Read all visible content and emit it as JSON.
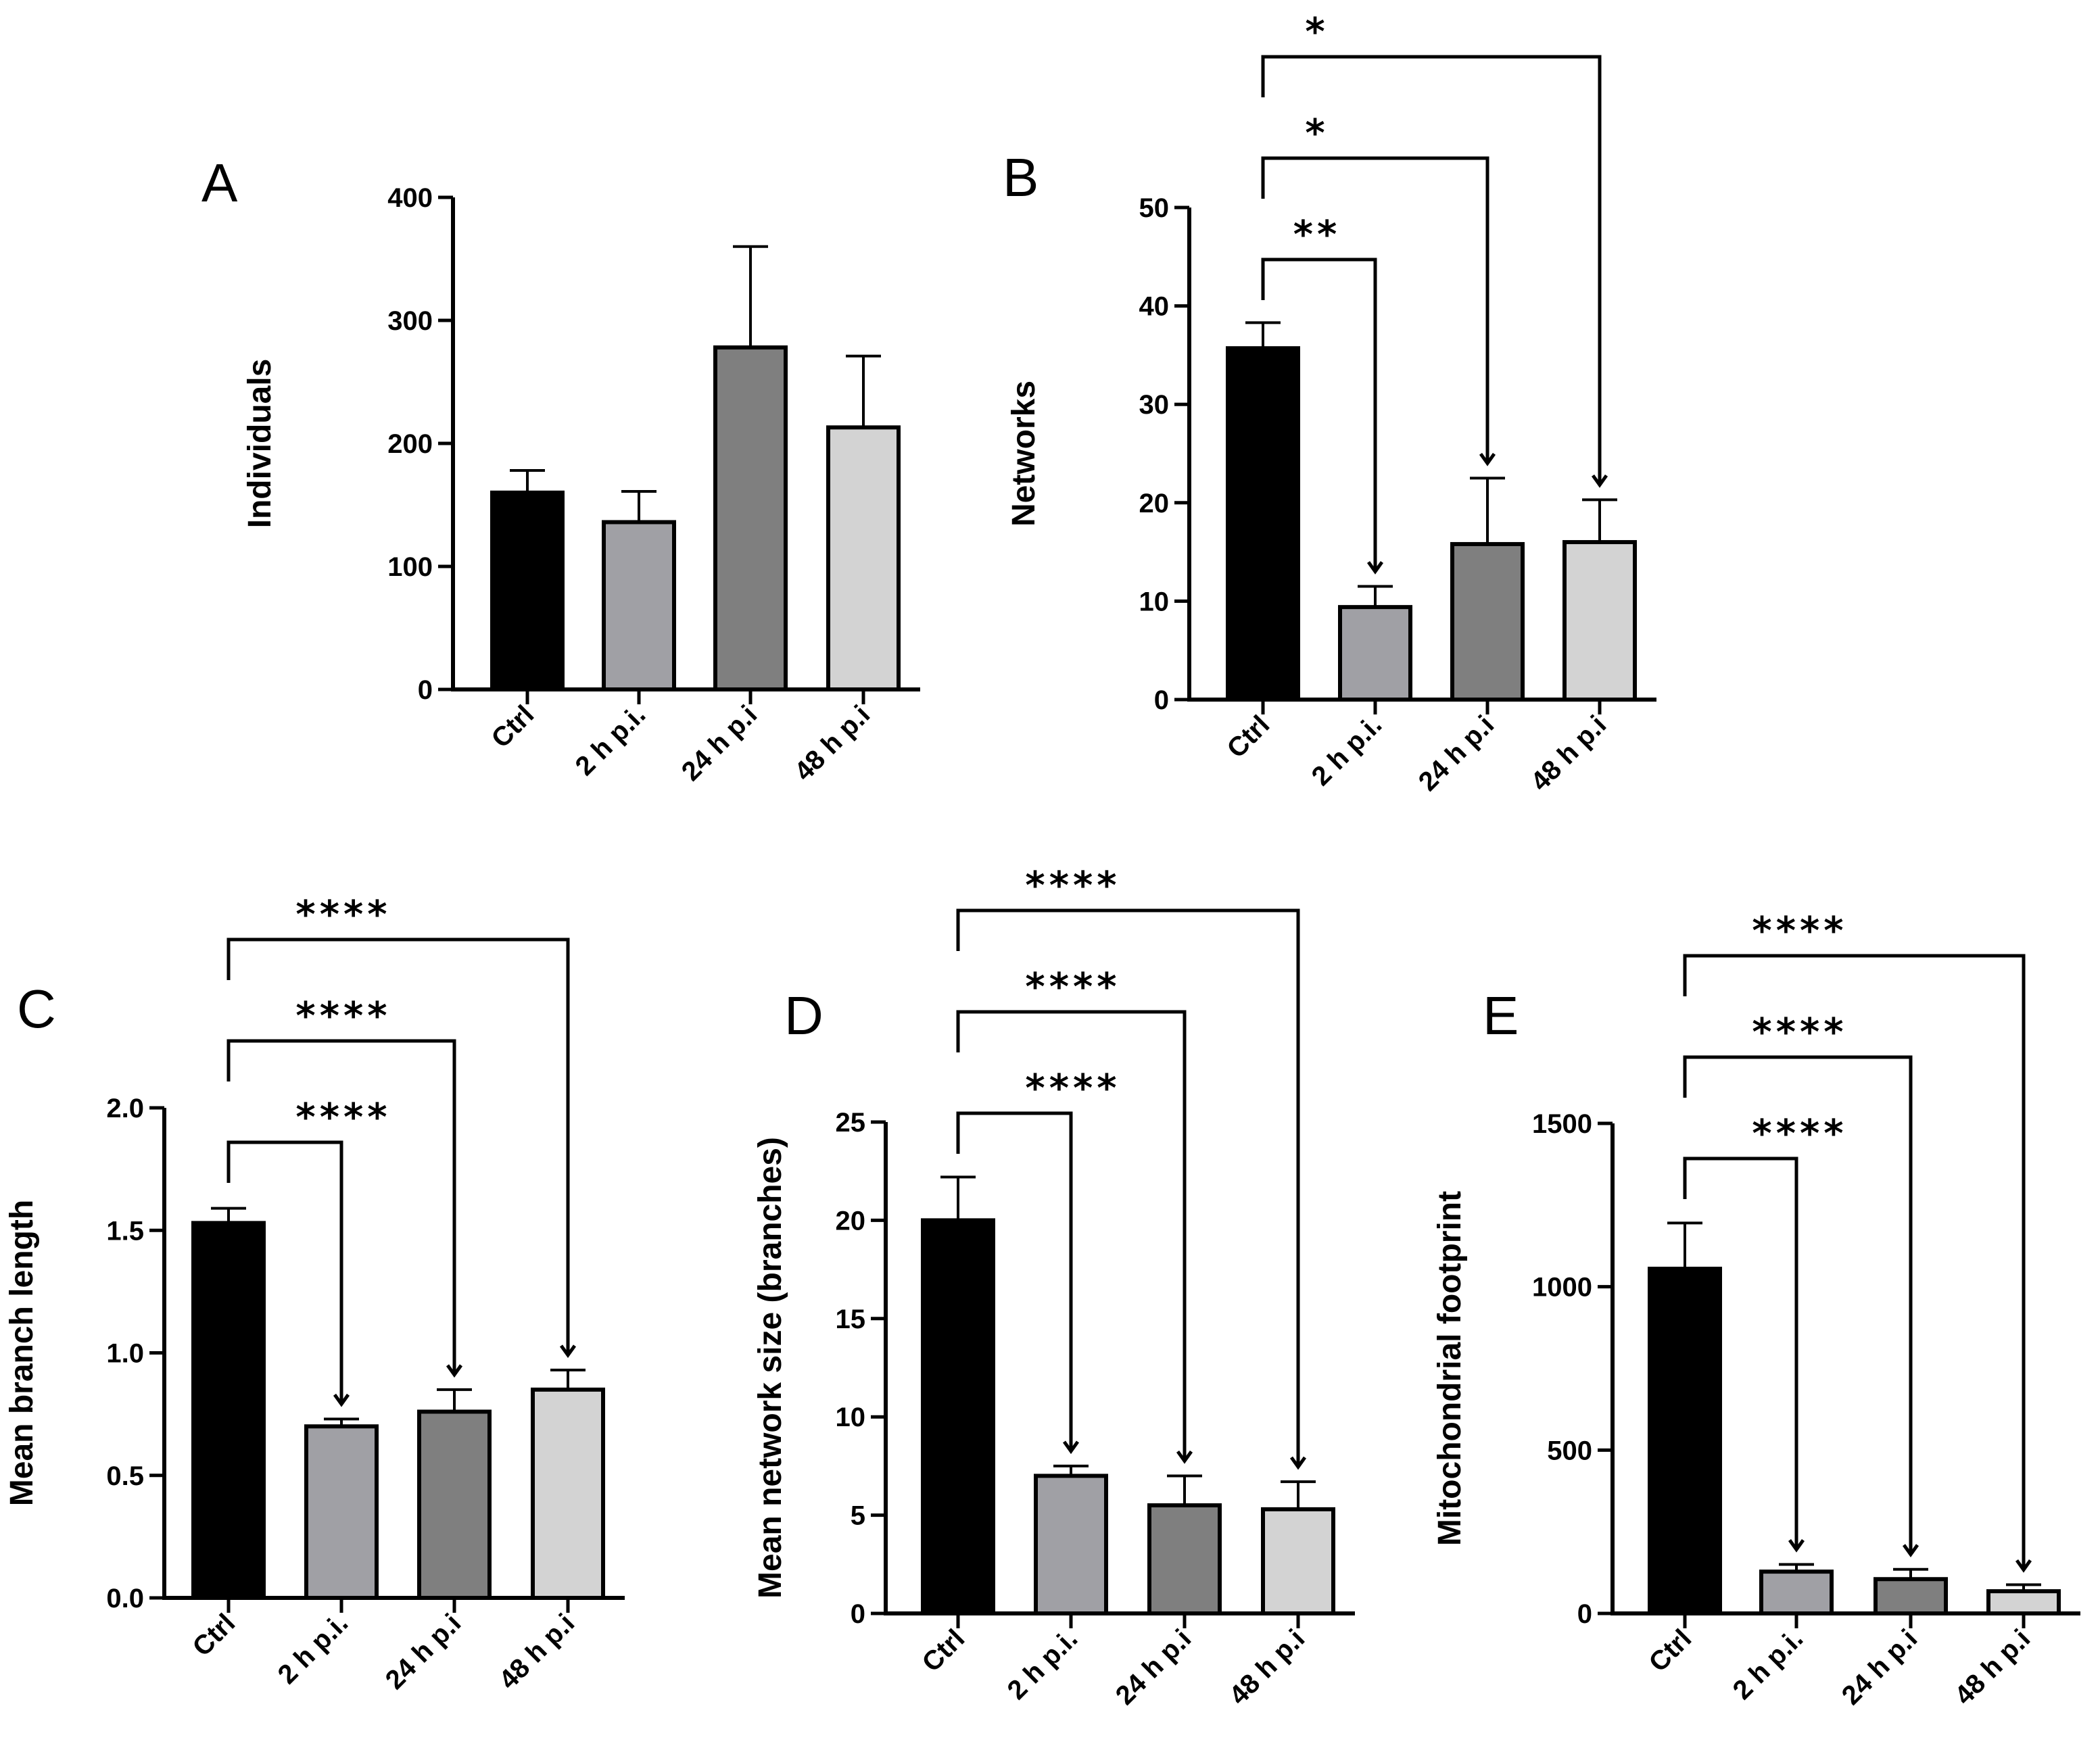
{
  "chart_data": [
    {
      "panel": "A",
      "type": "bar",
      "ylabel": "Individuals",
      "ylim": [
        0,
        400
      ],
      "yticks": [
        0,
        100,
        200,
        300,
        400
      ],
      "categories": [
        "Ctrl",
        "2 h p.i.",
        "24 h p.i",
        "48 h p.i"
      ],
      "values": [
        160,
        136,
        278,
        213
      ],
      "errors": [
        18,
        25,
        82,
        58
      ],
      "colors": [
        "#000000",
        "#a0a0a5",
        "#7f7f7f",
        "#d3d3d3"
      ],
      "significance": []
    },
    {
      "panel": "B",
      "type": "bar",
      "ylabel": "Networks",
      "ylim": [
        0,
        50
      ],
      "yticks": [
        0,
        10,
        20,
        30,
        40,
        50
      ],
      "categories": [
        "Ctrl",
        "2 h p.i.",
        "24 h p.i",
        "48 h p.i"
      ],
      "values": [
        35.7,
        9.4,
        15.8,
        16
      ],
      "errors": [
        2.6,
        2.1,
        6.7,
        4.3
      ],
      "colors": [
        "#000000",
        "#a0a0a5",
        "#7f7f7f",
        "#d3d3d3"
      ],
      "significance": [
        {
          "from": 0,
          "to": 1,
          "label": "**"
        },
        {
          "from": 0,
          "to": 2,
          "label": "*"
        },
        {
          "from": 0,
          "to": 3,
          "label": "*"
        }
      ]
    },
    {
      "panel": "C",
      "type": "bar",
      "ylabel": "Mean branch length",
      "ylim": [
        0,
        2.0
      ],
      "yticks": [
        "0.0",
        "0.5",
        "1.0",
        "1.5",
        "2.0"
      ],
      "categories": [
        "Ctrl",
        "2 h p.i.",
        "24 h p.i",
        "48 h p.i"
      ],
      "values": [
        1.53,
        0.7,
        0.76,
        0.85
      ],
      "errors": [
        0.06,
        0.03,
        0.09,
        0.08
      ],
      "colors": [
        "#000000",
        "#a0a0a5",
        "#7f7f7f",
        "#d3d3d3"
      ],
      "significance": [
        {
          "from": 0,
          "to": 1,
          "label": "****"
        },
        {
          "from": 0,
          "to": 2,
          "label": "****"
        },
        {
          "from": 0,
          "to": 3,
          "label": "****"
        }
      ]
    },
    {
      "panel": "D",
      "type": "bar",
      "ylabel": "Mean network size (branches)",
      "ylim": [
        0,
        25
      ],
      "yticks": [
        0,
        5,
        10,
        15,
        20,
        25
      ],
      "categories": [
        "Ctrl",
        "2 h p.i.",
        "24 h p.i",
        "48 h p.i"
      ],
      "values": [
        20,
        7,
        5.5,
        5.3
      ],
      "errors": [
        2.2,
        0.5,
        1.5,
        1.4
      ],
      "colors": [
        "#000000",
        "#a0a0a5",
        "#7f7f7f",
        "#d3d3d3"
      ],
      "significance": [
        {
          "from": 0,
          "to": 1,
          "label": "****"
        },
        {
          "from": 0,
          "to": 2,
          "label": "****"
        },
        {
          "from": 0,
          "to": 3,
          "label": "****"
        }
      ]
    },
    {
      "panel": "E",
      "type": "bar",
      "ylabel": "Mitochondrial footprint",
      "ylim": [
        0,
        1500
      ],
      "yticks": [
        0,
        500,
        1000,
        1500
      ],
      "categories": [
        "Ctrl",
        "2 h p.i.",
        "24 h p.i",
        "48 h p.i"
      ],
      "values": [
        1055,
        128,
        105,
        68
      ],
      "errors": [
        140,
        22,
        30,
        20
      ],
      "colors": [
        "#000000",
        "#a0a0a5",
        "#7f7f7f",
        "#d3d3d3"
      ],
      "significance": [
        {
          "from": 0,
          "to": 1,
          "label": "****"
        },
        {
          "from": 0,
          "to": 2,
          "label": "****"
        },
        {
          "from": 0,
          "to": 3,
          "label": "****"
        }
      ]
    }
  ]
}
